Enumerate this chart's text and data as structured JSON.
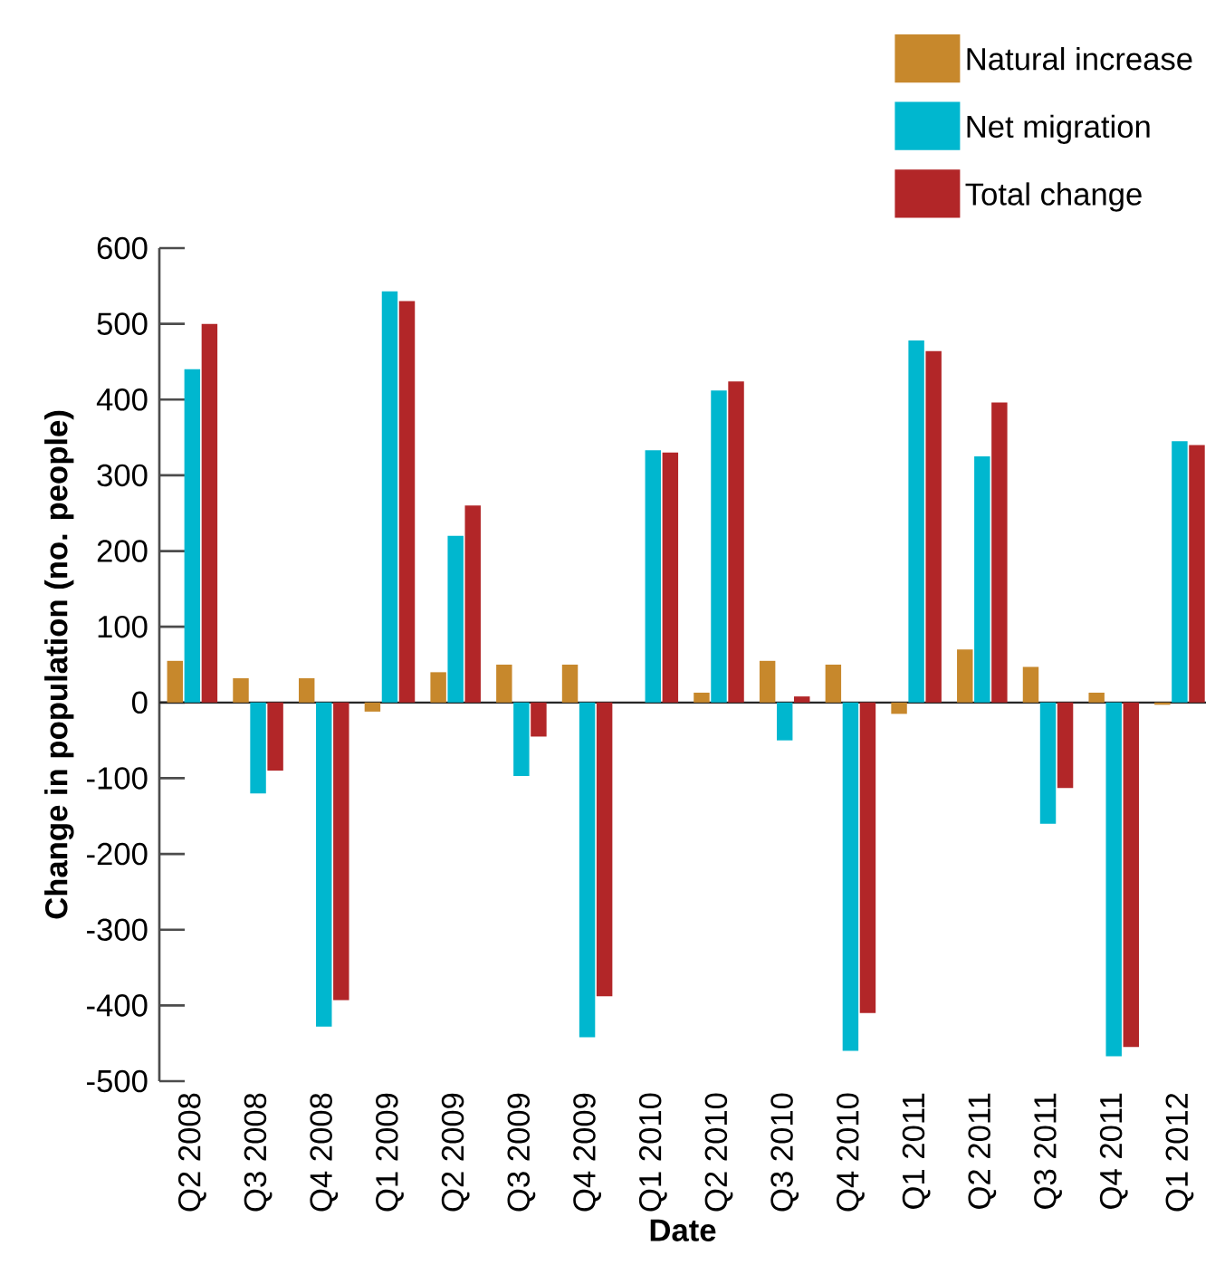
{
  "chart_data": {
    "type": "bar",
    "xlabel": "Date",
    "ylabel": "Change in population (no. people)",
    "categories": [
      "Q2 2008",
      "Q3 2008",
      "Q4 2008",
      "Q1 2009",
      "Q2 2009",
      "Q3 2009",
      "Q4 2009",
      "Q1 2010",
      "Q2 2010",
      "Q3 2010",
      "Q4 2010",
      "Q1 2011",
      "Q2 2011",
      "Q3 2011",
      "Q4 2011",
      "Q1 2012"
    ],
    "series": [
      {
        "name": "Natural increase",
        "color": "#c7882c",
        "values": [
          55,
          32,
          32,
          -12,
          40,
          50,
          50,
          0,
          13,
          55,
          50,
          -15,
          70,
          47,
          13,
          -3
        ]
      },
      {
        "name": "Net migration",
        "color": "#00b7cf",
        "values": [
          440,
          -120,
          -428,
          543,
          220,
          -97,
          -442,
          333,
          412,
          -50,
          -460,
          478,
          325,
          -160,
          -467,
          345
        ]
      },
      {
        "name": "Total change",
        "color": "#b22628",
        "values": [
          500,
          -90,
          -393,
          530,
          260,
          -45,
          -388,
          330,
          424,
          8,
          -410,
          464,
          396,
          -113,
          -455,
          340
        ]
      }
    ],
    "ylim": [
      -500,
      600
    ],
    "yticks": [
      -500,
      -400,
      -300,
      -200,
      -100,
      0,
      100,
      200,
      300,
      400,
      500,
      600
    ],
    "legend": "top right"
  }
}
